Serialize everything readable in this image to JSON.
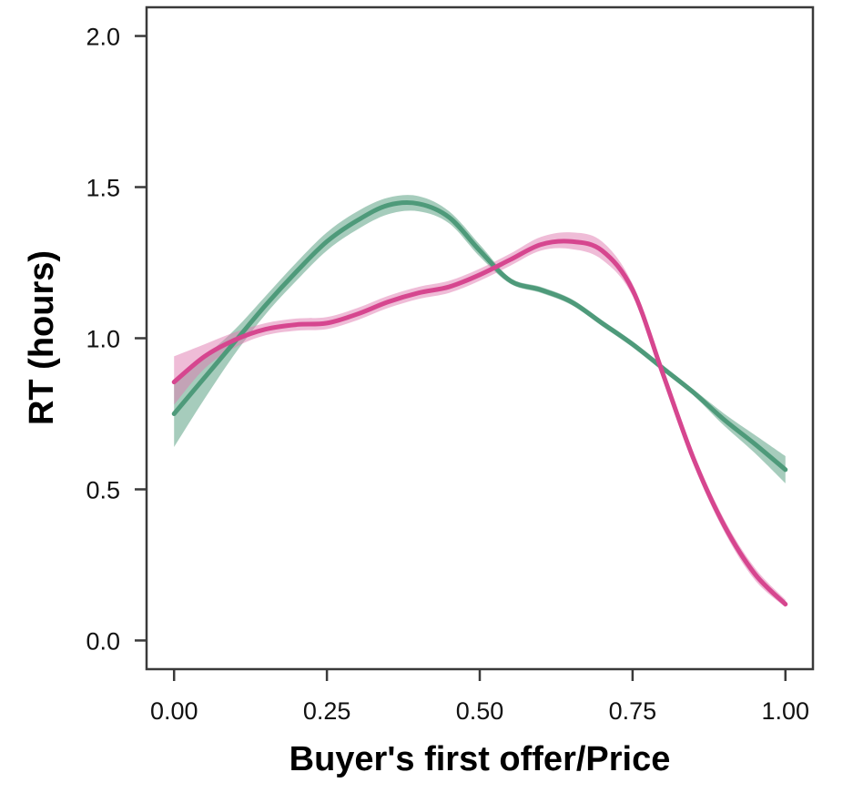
{
  "chart_data": {
    "type": "line",
    "title": "",
    "xlabel": "Buyer's first offer/Price",
    "ylabel": "RT (hours)",
    "xlim": [
      -0.045,
      1.045
    ],
    "ylim": [
      -0.095,
      2.095
    ],
    "xticks": [
      0.0,
      0.25,
      0.5,
      0.75,
      1.0
    ],
    "xtick_labels": [
      "0.00",
      "0.25",
      "0.50",
      "0.75",
      "1.00"
    ],
    "yticks": [
      0.0,
      0.5,
      1.0,
      1.5,
      2.0
    ],
    "ytick_labels": [
      "0.0",
      "0.5",
      "1.0",
      "1.5",
      "2.0"
    ],
    "grid": false,
    "legend": "none",
    "series": [
      {
        "color": "#4e9a7a",
        "band_color": "#4e9a7a",
        "x": [
          0.0,
          0.05,
          0.1,
          0.15,
          0.2,
          0.25,
          0.3,
          0.35,
          0.4,
          0.45,
          0.5,
          0.55,
          0.6,
          0.65,
          0.7,
          0.75,
          0.8,
          0.85,
          0.9,
          0.95,
          1.0
        ],
        "y": [
          0.75,
          0.87,
          0.99,
          1.11,
          1.22,
          1.32,
          1.39,
          1.44,
          1.445,
          1.4,
          1.29,
          1.19,
          1.16,
          1.12,
          1.05,
          0.98,
          0.9,
          0.82,
          0.73,
          0.65,
          0.565
        ],
        "lower": [
          0.64,
          0.8,
          0.95,
          1.08,
          1.19,
          1.29,
          1.36,
          1.41,
          1.42,
          1.38,
          1.27,
          1.18,
          1.15,
          1.11,
          1.04,
          0.97,
          0.89,
          0.81,
          0.71,
          0.62,
          0.52
        ],
        "upper": [
          0.86,
          0.94,
          1.03,
          1.14,
          1.25,
          1.35,
          1.42,
          1.465,
          1.47,
          1.42,
          1.31,
          1.2,
          1.17,
          1.13,
          1.06,
          0.99,
          0.91,
          0.83,
          0.75,
          0.68,
          0.61
        ]
      },
      {
        "color": "#d6468f",
        "band_color": "#e07ab0",
        "x": [
          0.0,
          0.05,
          0.1,
          0.15,
          0.2,
          0.25,
          0.3,
          0.35,
          0.4,
          0.45,
          0.5,
          0.55,
          0.6,
          0.65,
          0.7,
          0.75,
          0.8,
          0.85,
          0.9,
          0.95,
          1.0
        ],
        "y": [
          0.855,
          0.94,
          0.995,
          1.03,
          1.045,
          1.05,
          1.08,
          1.12,
          1.15,
          1.17,
          1.21,
          1.26,
          1.31,
          1.32,
          1.29,
          1.16,
          0.88,
          0.6,
          0.38,
          0.22,
          0.12
        ],
        "lower": [
          0.78,
          0.9,
          0.97,
          1.01,
          1.025,
          1.03,
          1.06,
          1.1,
          1.13,
          1.15,
          1.19,
          1.24,
          1.29,
          1.295,
          1.26,
          1.14,
          0.86,
          0.58,
          0.36,
          0.2,
          0.11
        ],
        "upper": [
          0.94,
          0.98,
          1.02,
          1.05,
          1.065,
          1.07,
          1.1,
          1.14,
          1.17,
          1.19,
          1.23,
          1.28,
          1.335,
          1.35,
          1.32,
          1.18,
          0.9,
          0.62,
          0.4,
          0.24,
          0.135
        ]
      }
    ]
  }
}
